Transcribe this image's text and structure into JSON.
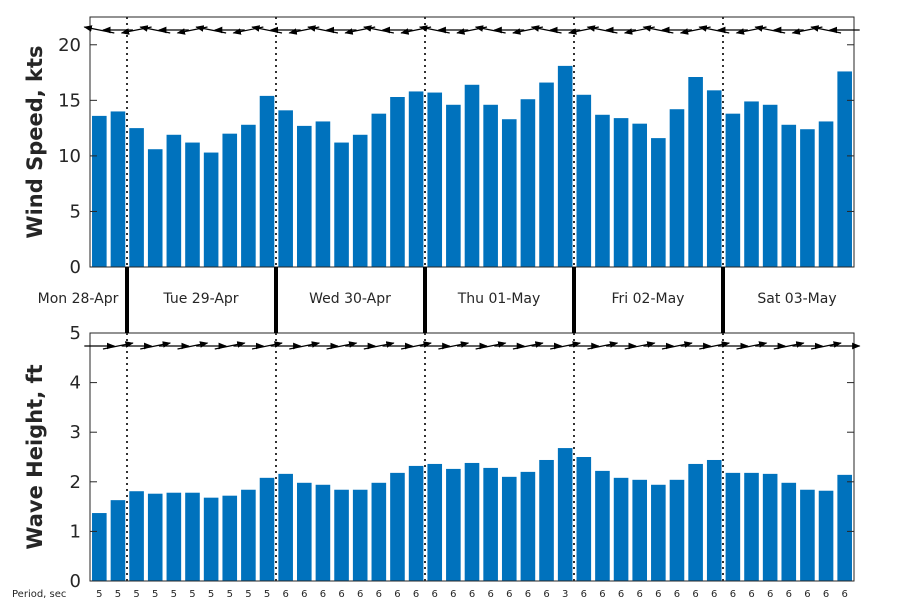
{
  "chart_data": [
    {
      "type": "bar",
      "ylabel": "Wind Speed, kts",
      "ylim": [
        0,
        22.5
      ],
      "yticks": [
        0,
        5,
        10,
        15,
        20
      ],
      "bar_color": "#0072BD",
      "values": [
        13.6,
        14.0,
        12.5,
        10.6,
        11.9,
        11.2,
        10.3,
        12.0,
        12.8,
        15.4,
        14.1,
        12.7,
        13.1,
        11.2,
        11.9,
        13.8,
        15.3,
        15.8,
        15.7,
        14.6,
        16.4,
        14.6,
        13.3,
        15.1,
        16.6,
        18.1,
        15.5,
        13.7,
        13.4,
        12.9,
        11.6,
        14.2,
        17.1,
        15.9,
        13.8,
        14.9,
        14.6,
        12.8,
        12.4,
        13.1,
        17.6
      ],
      "direction_arrows": "pointing left (wind from the east)"
    },
    {
      "type": "bar",
      "ylabel": "Wave Height, ft",
      "ylim": [
        0,
        5
      ],
      "yticks": [
        0,
        1,
        2,
        3,
        4,
        5
      ],
      "bar_color": "#0072BD",
      "values": [
        1.37,
        1.63,
        1.81,
        1.76,
        1.78,
        1.78,
        1.68,
        1.72,
        1.84,
        2.08,
        2.16,
        1.98,
        1.94,
        1.84,
        1.84,
        1.98,
        2.18,
        2.32,
        2.36,
        2.26,
        2.38,
        2.28,
        2.1,
        2.2,
        2.44,
        2.68,
        2.5,
        2.22,
        2.08,
        2.04,
        1.94,
        2.04,
        2.36,
        2.44,
        2.18,
        2.18,
        2.16,
        1.98,
        1.84,
        1.82,
        2.14
      ],
      "direction_arrows": "pointing right",
      "period_label": "Period, sec",
      "periods": [
        "5",
        "5",
        "5",
        "5",
        "5",
        "5",
        "5",
        "5",
        "5",
        "5",
        "6",
        "6",
        "6",
        "6",
        "6",
        "6",
        "6",
        "6",
        "6",
        "6",
        "6",
        "6",
        "6",
        "6",
        "6",
        "3",
        "6",
        "6",
        "6",
        "6",
        "6",
        "6",
        "6",
        "6",
        "6",
        "6",
        "6",
        "6",
        "6",
        "6",
        "6"
      ]
    }
  ],
  "days": [
    "Mon 28-Apr",
    "Tue 29-Apr",
    "Wed 30-Apr",
    "Thu 01-May",
    "Fri 02-May",
    "Sat 03-May"
  ]
}
